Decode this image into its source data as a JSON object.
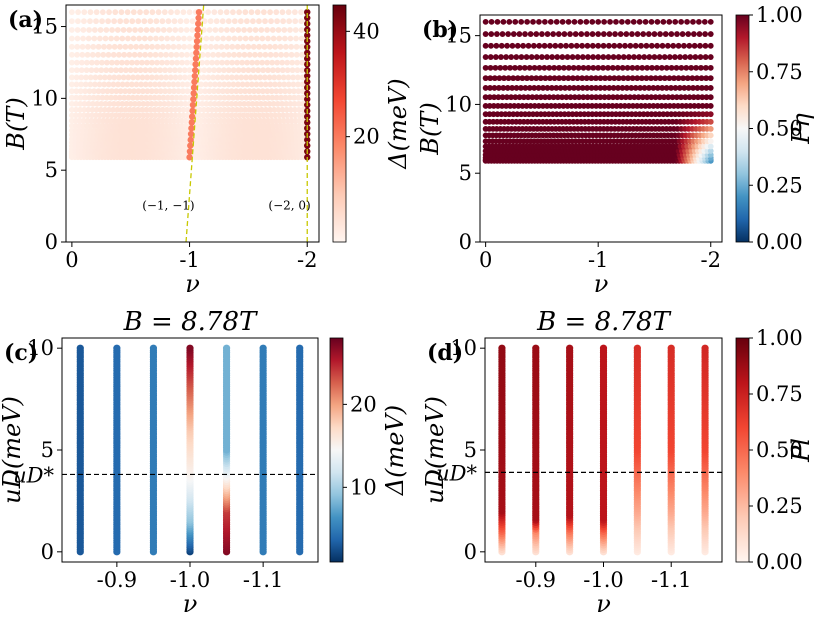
{
  "palettes": {
    "reds": [
      "#fff5f0",
      "#fdcab5",
      "#fc8a6a",
      "#f24632",
      "#bc141a",
      "#67000d"
    ],
    "rdbu": [
      "#053061",
      "#2166ac",
      "#4393c3",
      "#92c5de",
      "#d1e5f0",
      "#f7f7f7",
      "#fddbc7",
      "#f4a582",
      "#d6604d",
      "#b2182b",
      "#67001f"
    ],
    "guide_line": "#c8c800"
  },
  "chart_data": [
    {
      "id": "a",
      "type": "scatter",
      "panel_label": "(a)",
      "xlabel": "ν",
      "ylabel": "B(T)",
      "xlim": [
        0.05,
        -2.1
      ],
      "ylim": [
        0,
        16.5
      ],
      "xticks": [
        0,
        -1,
        -2
      ],
      "xtick_labels": [
        "0",
        "-1",
        "-2"
      ],
      "yticks": [
        0,
        5,
        10,
        15
      ],
      "ytick_labels": [
        "0",
        "5",
        "10",
        "15"
      ],
      "grid": false,
      "series": [
        {
          "x_range": [
            0,
            -2
          ],
          "B_range": [
            5.9,
            16.0
          ],
          "value_range": [
            0,
            4
          ],
          "note_values": "gap Δ in meV across the (ν, B) grid; small away from fan lines"
        },
        {
          "x": [
            -1.0,
            -1.05,
            -1.08
          ],
          "y": [
            5.9,
            10.0,
            16.0
          ],
          "value": 20
        },
        {
          "x": [
            -2.0,
            -2.0,
            -2.0
          ],
          "y": [
            5.9,
            10.0,
            16.0
          ],
          "value": 43
        }
      ],
      "annotations": [
        {
          "text": "(−1, −1)",
          "x": -0.82,
          "y": 2.6
        },
        {
          "text": "(−2, 0)",
          "x": -1.85,
          "y": 2.6
        }
      ],
      "guide_lines": [
        {
          "x": [
            -0.97,
            -1.12
          ],
          "y": [
            0,
            16.5
          ]
        },
        {
          "x": [
            -2.0,
            -2.0
          ],
          "y": [
            0,
            16.5
          ]
        }
      ],
      "colorbar": {
        "label": "Δ(meV)",
        "range": [
          0,
          45
        ],
        "ticks": [
          20,
          40
        ],
        "tick_labels": [
          "20",
          "40"
        ],
        "cmap": "reds"
      }
    },
    {
      "id": "b",
      "type": "scatter",
      "panel_label": "(b)",
      "xlabel": "ν",
      "ylabel": "B(T)",
      "xlim": [
        0.05,
        -2.1
      ],
      "ylim": [
        0,
        16.5
      ],
      "xticks": [
        0,
        -1,
        -2
      ],
      "xtick_labels": [
        "0",
        "-1",
        "-2"
      ],
      "yticks": [
        0,
        5,
        10,
        15
      ],
      "ytick_labels": [
        "0",
        "5",
        "10",
        "15"
      ],
      "grid": false,
      "series": [
        {
          "x_range": [
            0,
            -2
          ],
          "B_range": [
            5.9,
            16.0
          ],
          "value": 1.0,
          "exception": "low P_η near ν≈-2 at B≈6-9 T (≈0.2-0.6)"
        }
      ],
      "colorbar": {
        "label": "Pη",
        "range": [
          0,
          1
        ],
        "ticks": [
          0,
          0.25,
          0.5,
          0.75,
          1.0
        ],
        "tick_labels": [
          "0.00",
          "0.25",
          "0.50",
          "0.75",
          "1.00"
        ],
        "cmap": "rdbu"
      }
    },
    {
      "id": "c",
      "type": "scatter",
      "panel_label": "(c)",
      "title": "B = 8.78T",
      "xlabel": "ν",
      "ylabel": "uD(meV)",
      "xlim": [
        -0.825,
        -1.175
      ],
      "ylim": [
        -0.5,
        10.5
      ],
      "xticks": [
        -0.9,
        -1.0,
        -1.1
      ],
      "xtick_labels": [
        "-0.9",
        "-1.0",
        "-1.1"
      ],
      "yticks": [
        0,
        5,
        10
      ],
      "ytick_labels": [
        "0",
        "5",
        "10"
      ],
      "reference_line": {
        "label": "uD*",
        "y": 3.8,
        "style": "dashed"
      },
      "grid": false,
      "series": [
        {
          "x": -0.85,
          "u_range": [
            0,
            10
          ],
          "value": 3
        },
        {
          "x": -0.9,
          "u_range": [
            0,
            10
          ],
          "value": 4
        },
        {
          "x": -0.95,
          "u_range": [
            0,
            10
          ],
          "value": 5
        },
        {
          "x": -1.0,
          "u_range": [
            0,
            10
          ],
          "values_at_u": [
            [
              0,
              2
            ],
            [
              1.5,
              9
            ],
            [
              3.8,
              15
            ],
            [
              6.0,
              18
            ],
            [
              10,
              27
            ]
          ]
        },
        {
          "x": -1.05,
          "u_range": [
            0,
            10
          ],
          "values_at_u": [
            [
              0,
              27
            ],
            [
              2.0,
              24
            ],
            [
              3.8,
              14
            ],
            [
              5.0,
              8
            ],
            [
              10,
              8
            ]
          ]
        },
        {
          "x": -1.1,
          "u_range": [
            0,
            10
          ],
          "value": 5
        },
        {
          "x": -1.15,
          "u_range": [
            0,
            10
          ],
          "value": 4
        }
      ],
      "colorbar": {
        "label": "Δ(meV)",
        "range": [
          1,
          28
        ],
        "ticks": [
          10,
          20
        ],
        "tick_labels": [
          "10",
          "20"
        ],
        "cmap": "rdbu"
      }
    },
    {
      "id": "d",
      "type": "scatter",
      "panel_label": "(d)",
      "title": "B = 8.78T",
      "xlabel": "ν",
      "ylabel": "uD(meV)",
      "xlim": [
        -0.825,
        -1.175
      ],
      "ylim": [
        -0.5,
        10.5
      ],
      "xticks": [
        -0.9,
        -1.0,
        -1.1
      ],
      "xtick_labels": [
        "-0.9",
        "-1.0",
        "-1.1"
      ],
      "yticks": [
        0,
        5,
        10
      ],
      "ytick_labels": [
        "0",
        "5",
        "10"
      ],
      "reference_line": {
        "label": "uD*",
        "y": 3.9,
        "style": "dashed"
      },
      "grid": false,
      "series": [
        {
          "x": -0.85,
          "u_range": [
            0,
            10
          ],
          "values_at_u": [
            [
              0,
              0.1
            ],
            [
              1.0,
              0.5
            ],
            [
              2.0,
              0.85
            ],
            [
              10,
              0.9
            ]
          ]
        },
        {
          "x": -0.9,
          "u_range": [
            0,
            10
          ],
          "values_at_u": [
            [
              0,
              0.1
            ],
            [
              1.0,
              0.4
            ],
            [
              1.6,
              0.85
            ],
            [
              10,
              0.88
            ]
          ]
        },
        {
          "x": -0.95,
          "u_range": [
            0,
            10
          ],
          "values_at_u": [
            [
              0,
              0.1
            ],
            [
              1.0,
              0.45
            ],
            [
              1.8,
              0.82
            ],
            [
              10,
              0.85
            ]
          ]
        },
        {
          "x": -1.0,
          "u_range": [
            0,
            10
          ],
          "values_at_u": [
            [
              0,
              0.1
            ],
            [
              1.0,
              0.5
            ],
            [
              1.6,
              0.8
            ],
            [
              10,
              0.8
            ]
          ]
        },
        {
          "x": -1.05,
          "u_range": [
            0,
            10
          ],
          "values_at_u": [
            [
              0,
              0.05
            ],
            [
              2.0,
              0.3
            ],
            [
              5.0,
              0.6
            ],
            [
              10,
              0.7
            ]
          ]
        },
        {
          "x": -1.1,
          "u_range": [
            0,
            10
          ],
          "values_at_u": [
            [
              0,
              0.05
            ],
            [
              2.0,
              0.3
            ],
            [
              5.0,
              0.6
            ],
            [
              10,
              0.7
            ]
          ]
        },
        {
          "x": -1.15,
          "u_range": [
            0,
            10
          ],
          "values_at_u": [
            [
              0,
              0.05
            ],
            [
              2.0,
              0.3
            ],
            [
              5.0,
              0.6
            ],
            [
              10,
              0.72
            ]
          ]
        }
      ],
      "colorbar": {
        "label": "Pl",
        "range": [
          0,
          1
        ],
        "ticks": [
          0,
          0.25,
          0.5,
          0.75,
          1.0
        ],
        "tick_labels": [
          "0.00",
          "0.25",
          "0.50",
          "0.75",
          "1.00"
        ],
        "cmap": "reds"
      }
    }
  ]
}
